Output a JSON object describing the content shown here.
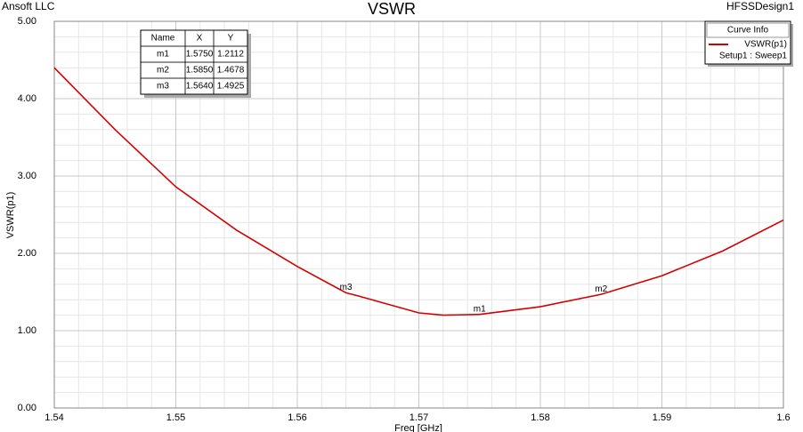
{
  "company": "Ansoft LLC",
  "design": "HFSSDesign1",
  "chart_data": {
    "type": "line",
    "title": "VSWR",
    "x_label": "Freq [GHz]",
    "y_label": "VSWR(p1)",
    "x": [
      1.54,
      1.545,
      1.55,
      1.555,
      1.56,
      1.564,
      1.565,
      1.57,
      1.572,
      1.575,
      1.58,
      1.585,
      1.59,
      1.595,
      1.6
    ],
    "series": [
      {
        "name": "VSWR(p1)",
        "color": "#d40000",
        "values": [
          4.4,
          3.6,
          2.86,
          2.3,
          1.83,
          1.49,
          1.45,
          1.23,
          1.2,
          1.21,
          1.31,
          1.47,
          1.71,
          2.03,
          2.43
        ]
      }
    ],
    "xlim": [
      1.54,
      1.6
    ],
    "xticks": [
      1.54,
      1.55,
      1.56,
      1.57,
      1.58,
      1.59,
      1.6
    ],
    "ylim": [
      0,
      5
    ],
    "yticks": [
      {
        "value": 0,
        "label": "0.00"
      },
      {
        "value": 1,
        "label": "1.00"
      },
      {
        "value": 2,
        "label": "2.00"
      },
      {
        "value": 3,
        "label": "3.00"
      },
      {
        "value": 4,
        "label": "4.00"
      },
      {
        "value": 5,
        "label": "5.00"
      }
    ],
    "grid": true,
    "legend": {
      "title": "Curve Info",
      "setup": "Setup1 : Sweep1",
      "position": "upper right"
    },
    "marker_table": {
      "header": [
        "Name",
        "X",
        "Y"
      ],
      "rows": [
        [
          "m1",
          "1.5750",
          "1.2112"
        ],
        [
          "m2",
          "1.5850",
          "1.4678"
        ],
        [
          "m3",
          "1.5640",
          "1.4925"
        ]
      ]
    }
  }
}
